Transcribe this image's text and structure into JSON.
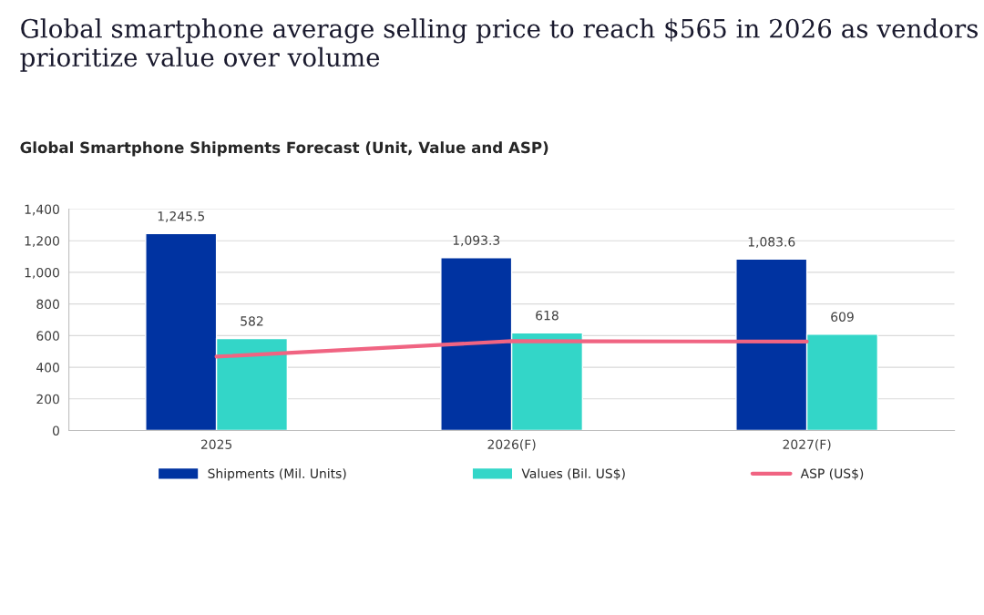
{
  "chart_data": {
    "type": "bar",
    "title": "Global smartphone average selling price to reach $565 in 2026 as vendors prioritize value over volume",
    "subtitle": "Global Smartphone Shipments Forecast (Unit, Value and ASP)",
    "categories": [
      "2025",
      "2026(F)",
      "2027(F)"
    ],
    "series": [
      {
        "name": "Shipments (Mil. Units)",
        "color": "#0033a1",
        "values": [
          1245.5,
          1093.3,
          1083.6
        ],
        "value_labels": [
          "1,245.5",
          "1,093.3",
          "1,083.6"
        ]
      },
      {
        "name": "Values (Bil. US$)",
        "color": "#33d6c8",
        "values": [
          582,
          618,
          609
        ],
        "value_labels": [
          "582",
          "618",
          "609"
        ]
      },
      {
        "name": "ASP (US$)",
        "type": "line",
        "color": "#f06482",
        "values": [
          467,
          565,
          562
        ]
      }
    ],
    "ylim": [
      0,
      1400
    ],
    "yticks": [
      0,
      200,
      400,
      600,
      800,
      {
        "value": 1000,
        "label": "1,000"
      },
      {
        "value": 1200,
        "label": "1,200"
      },
      {
        "value": 1400,
        "label": "1,400"
      }
    ],
    "grid": "y",
    "legend": "bottom"
  }
}
